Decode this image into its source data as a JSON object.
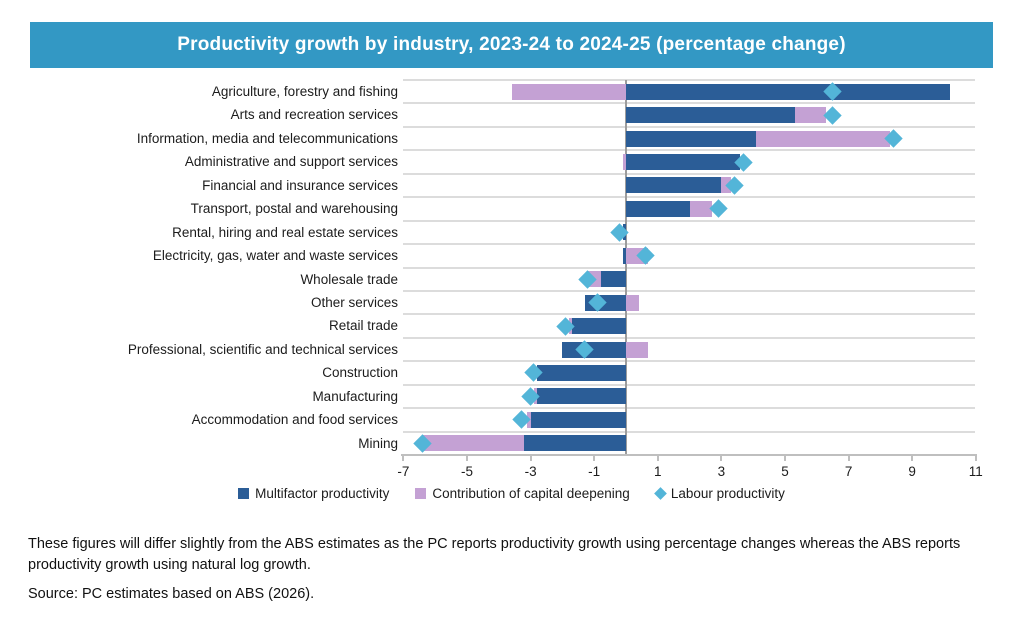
{
  "title": "Productivity growth by industry, 2023-24 to 2024-25 (percentage change)",
  "colors": {
    "title_bar": "#3398c4",
    "multifactor": "#2b5d97",
    "capital_deepening": "#c4a1d4",
    "labour": "#53b5d8",
    "gridline": "#dcdcdc",
    "zero_line": "#9d9d9d",
    "axis": "#bfbfbf"
  },
  "chart_data": {
    "type": "bar",
    "orientation": "horizontal",
    "stacked": true,
    "grid": "row-separators",
    "legend_position": "bottom",
    "xlim": [
      -7,
      11
    ],
    "x_ticks": [
      -7,
      -5,
      -3,
      -1,
      1,
      3,
      5,
      7,
      9,
      11
    ],
    "categories": [
      "Agriculture, forestry and fishing",
      "Arts and recreation services",
      "Information, media and telecommunications",
      "Administrative and support services",
      "Financial and insurance services",
      "Transport, postal and warehousing",
      "Rental, hiring and real estate services",
      "Electricity, gas, water and waste services",
      "Wholesale trade",
      "Other services",
      "Retail trade",
      "Professional, scientific and technical services",
      "Construction",
      "Manufacturing",
      "Accommodation and food services",
      "Mining"
    ],
    "series": [
      {
        "name": "Multifactor productivity",
        "type": "bar",
        "values": [
          10.2,
          5.3,
          4.1,
          3.6,
          3.0,
          2.0,
          -0.1,
          -0.1,
          -0.8,
          -1.3,
          -1.7,
          -2.0,
          -2.8,
          -2.8,
          -3.0,
          -3.2
        ]
      },
      {
        "name": "Contribution of capital deepening",
        "type": "bar",
        "values": [
          -3.6,
          1.0,
          4.2,
          -0.1,
          0.3,
          0.7,
          0.0,
          0.7,
          -0.4,
          0.4,
          -0.1,
          0.7,
          0.0,
          -0.1,
          -0.1,
          -3.2
        ]
      },
      {
        "name": "Labour productivity",
        "type": "scatter",
        "marker": "diamond",
        "values": [
          6.5,
          6.5,
          8.4,
          3.7,
          3.4,
          2.9,
          -0.2,
          0.6,
          -1.2,
          -0.9,
          -1.9,
          -1.3,
          -2.9,
          -3.0,
          -3.3,
          -6.4
        ]
      }
    ]
  },
  "footnote": "These figures will differ slightly from the ABS estimates as the PC reports productivity growth using percentage changes whereas the ABS reports productivity growth using natural log growth.",
  "source": "Source: PC estimates based on ABS (2026)."
}
